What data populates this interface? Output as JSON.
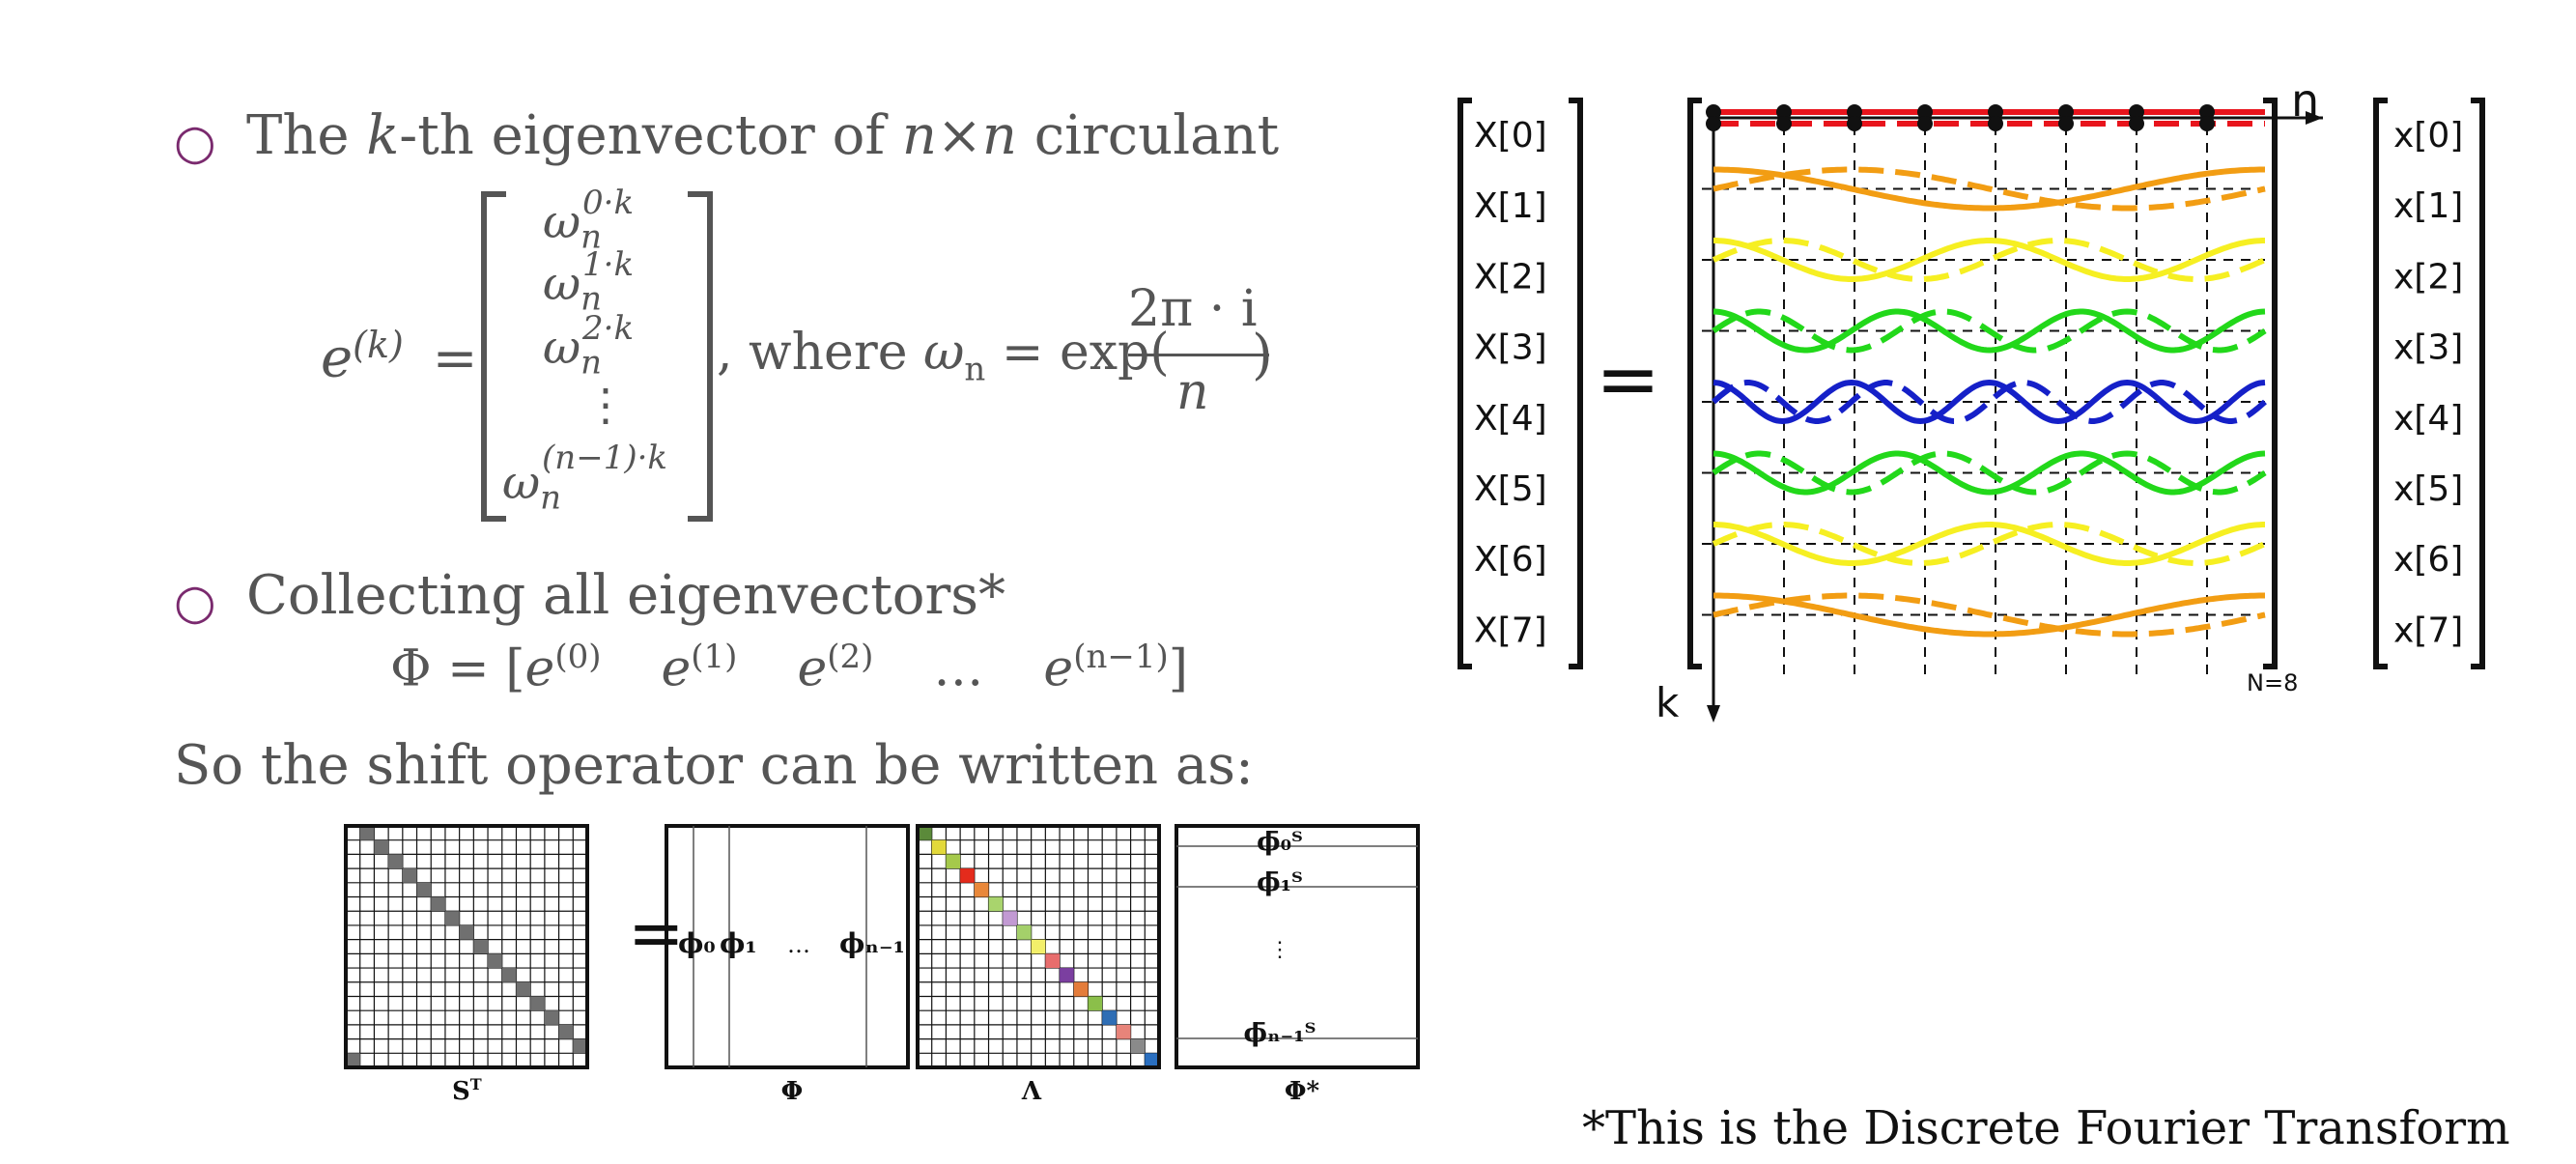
{
  "bullet1": {
    "marker": "○",
    "pre": "The ",
    "k": "k",
    "mid": "-th eigenvector of ",
    "n1": "n",
    "times": "×",
    "n2": "n",
    "post": " circulant"
  },
  "eigvec": {
    "lhs": "e",
    "lhs_sup": "(k)",
    "equals": "=",
    "entries": [
      {
        "base": "ω",
        "sub": "n",
        "sup": "0·k"
      },
      {
        "base": "ω",
        "sub": "n",
        "sup": "1·k"
      },
      {
        "base": "ω",
        "sub": "n",
        "sup": "2·k"
      },
      {
        "base": "⋮",
        "sub": "",
        "sup": ""
      },
      {
        "base": "ω",
        "sub": "n",
        "sup": "(n−1)·k"
      }
    ],
    "where": ", where ",
    "omega": "ω",
    "omega_sub": "n",
    "eq2": " = exp(",
    "frac_num": "2π · i",
    "frac_den": "n",
    "close": ")"
  },
  "bullet2": {
    "marker": "○",
    "text": "Collecting all eigenvectors*"
  },
  "phi_eq": {
    "lhs": "Φ = [",
    "terms": [
      {
        "base": "e",
        "sup": "(0)"
      },
      {
        "base": "e",
        "sup": "(1)"
      },
      {
        "base": "e",
        "sup": "(2)"
      },
      {
        "base": "…",
        "sup": ""
      },
      {
        "base": "e",
        "sup": "(n−1)"
      }
    ],
    "rhs": "]"
  },
  "shift_text": "So the shift operator can be written as:",
  "matrices": {
    "labels": [
      "S",
      "Φ",
      "Λ",
      "Φ*"
    ],
    "label_sup": "T",
    "equals": "=",
    "phi_cols": [
      "ϕ₀",
      "ϕ₁",
      "…",
      "ϕₙ₋₁"
    ],
    "phistar_rows": [
      "ϕ̄₀ᵀ",
      "ϕ̄₁ᵀ",
      "⋮",
      "ϕ̄ₙ₋₁ᵀ"
    ],
    "lambda_colors": [
      "#5b8a3a",
      "#e3d93a",
      "#a5c94b",
      "#e42b1c",
      "#e9883a",
      "#a9d46d",
      "#c29ad3",
      "#a4d06a",
      "#f3ef6a",
      "#e86d6d",
      "#7b3fa0",
      "#e47c3a",
      "#8bbf4a",
      "#2f6eb5",
      "#e8847a",
      "#8a8a8a",
      "#2a6fc0"
    ]
  },
  "dft": {
    "X_labels": [
      "X[0]",
      "X[1]",
      "X[2]",
      "X[3]",
      "X[4]",
      "X[5]",
      "X[6]",
      "X[7]"
    ],
    "x_labels": [
      "x[0]",
      "x[1]",
      "x[2]",
      "x[3]",
      "x[4]",
      "x[5]",
      "x[6]",
      "x[7]"
    ],
    "equals": "=",
    "axis_n": "n",
    "axis_k": "k",
    "n_label": "N=8",
    "colors": [
      "#e8141c",
      "#f29d13",
      "#f6ef22",
      "#22d81a",
      "#1520c8",
      "#22d81a",
      "#f6ef22",
      "#f29d13"
    ]
  },
  "footnote": "*This is the Discrete Fourier Transform"
}
